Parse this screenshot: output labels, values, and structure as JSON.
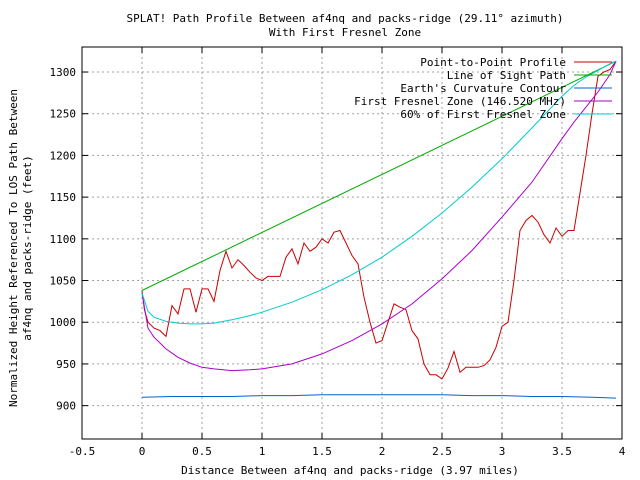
{
  "chart_data": {
    "type": "line",
    "title": "SPLAT! Path Profile Between af4nq and packs-ridge (29.11° azimuth)",
    "subtitle": "With First Fresnel Zone",
    "xlabel": "Distance Between af4nq and packs-ridge (3.97 miles)",
    "ylabel": [
      "Normalized Height Referenced To LOS Path Between",
      "af4nq and packs-ridge (feet)"
    ],
    "xlim": [
      -0.5,
      4
    ],
    "ylim": [
      860,
      1330
    ],
    "xticks": [
      -0.5,
      0,
      0.5,
      1,
      1.5,
      2,
      2.5,
      3,
      3.5,
      4
    ],
    "xtick_labels": [
      "-0.5",
      "0",
      "0.5",
      "1",
      "1.5",
      "2",
      "2.5",
      "3",
      "3.5",
      "4"
    ],
    "yticks": [
      900,
      950,
      1000,
      1050,
      1100,
      1150,
      1200,
      1250,
      1300
    ],
    "ytick_labels": [
      "900",
      "950",
      "1000",
      "1050",
      "1100",
      "1150",
      "1200",
      "1250",
      "1300"
    ],
    "grid": true,
    "legend_position": "top-right",
    "series": [
      {
        "name": "Point-to-Point Profile",
        "color": "#cc0000",
        "x": [
          0,
          0.02,
          0.05,
          0.1,
          0.15,
          0.2,
          0.25,
          0.3,
          0.35,
          0.4,
          0.45,
          0.5,
          0.55,
          0.6,
          0.65,
          0.7,
          0.75,
          0.8,
          0.85,
          0.9,
          0.95,
          1.0,
          1.05,
          1.1,
          1.15,
          1.2,
          1.25,
          1.3,
          1.35,
          1.4,
          1.45,
          1.5,
          1.55,
          1.6,
          1.65,
          1.7,
          1.75,
          1.8,
          1.85,
          1.9,
          1.95,
          2.0,
          2.05,
          2.1,
          2.15,
          2.2,
          2.25,
          2.3,
          2.35,
          2.4,
          2.45,
          2.5,
          2.55,
          2.6,
          2.65,
          2.7,
          2.75,
          2.8,
          2.85,
          2.9,
          2.95,
          3.0,
          3.05,
          3.1,
          3.15,
          3.2,
          3.25,
          3.3,
          3.35,
          3.4,
          3.45,
          3.5,
          3.55,
          3.6,
          3.65,
          3.7,
          3.75,
          3.8,
          3.85,
          3.9,
          3.95
        ],
        "y": [
          1038,
          1015,
          1000,
          993,
          990,
          983,
          1020,
          1010,
          1040,
          1040,
          1012,
          1040,
          1040,
          1025,
          1062,
          1085,
          1065,
          1075,
          1068,
          1060,
          1053,
          1050,
          1055,
          1055,
          1055,
          1078,
          1088,
          1070,
          1095,
          1085,
          1090,
          1100,
          1095,
          1108,
          1110,
          1095,
          1080,
          1070,
          1030,
          1000,
          975,
          978,
          1000,
          1022,
          1018,
          1015,
          990,
          980,
          950,
          937,
          937,
          932,
          945,
          965,
          940,
          946,
          946,
          946,
          948,
          955,
          970,
          995,
          1000,
          1050,
          1110,
          1122,
          1128,
          1120,
          1105,
          1095,
          1113,
          1103,
          1110,
          1110,
          1155,
          1200,
          1250,
          1295,
          1300,
          1303,
          1313
        ]
      },
      {
        "name": "Line of Sight Path",
        "color": "#00aa00",
        "x": [
          0,
          3.95
        ],
        "y": [
          1038,
          1313
        ]
      },
      {
        "name": "Earth's Curvature Contour",
        "color": "#0066cc",
        "x": [
          0,
          0.25,
          0.5,
          0.75,
          1.0,
          1.25,
          1.5,
          1.75,
          2.0,
          2.25,
          2.5,
          2.75,
          3.0,
          3.25,
          3.5,
          3.75,
          3.95
        ],
        "y": [
          910,
          911,
          911,
          911,
          912,
          912,
          913,
          913,
          913,
          913,
          913,
          912,
          912,
          911,
          911,
          910,
          909
        ]
      },
      {
        "name": "First Fresnel Zone (146.520 MHz)",
        "color": "#aa00cc",
        "x": [
          0,
          0.05,
          0.1,
          0.2,
          0.3,
          0.4,
          0.5,
          0.6,
          0.75,
          0.9,
          1.0,
          1.25,
          1.5,
          1.75,
          2.0,
          2.25,
          2.5,
          2.75,
          3.0,
          3.25,
          3.5,
          3.6,
          3.7,
          3.8,
          3.9,
          3.95
        ],
        "y": [
          1035,
          993,
          982,
          968,
          958,
          951,
          946,
          944,
          942,
          943,
          944,
          950,
          962,
          978,
          998,
          1022,
          1052,
          1086,
          1126,
          1168,
          1220,
          1240,
          1258,
          1276,
          1297,
          1313
        ]
      },
      {
        "name": "60% of First Fresnel Zone",
        "color": "#00cccc",
        "x": [
          0,
          0.05,
          0.1,
          0.2,
          0.3,
          0.4,
          0.5,
          0.6,
          0.75,
          0.9,
          1.0,
          1.25,
          1.5,
          1.75,
          2.0,
          2.25,
          2.5,
          2.75,
          3.0,
          3.25,
          3.5,
          3.6,
          3.7,
          3.8,
          3.9,
          3.95
        ],
        "y": [
          1035,
          1013,
          1006,
          1001,
          999,
          998,
          998,
          999,
          1003,
          1008,
          1012,
          1024,
          1039,
          1057,
          1078,
          1103,
          1131,
          1162,
          1196,
          1233,
          1271,
          1284,
          1294,
          1302,
          1310,
          1313
        ]
      }
    ]
  }
}
